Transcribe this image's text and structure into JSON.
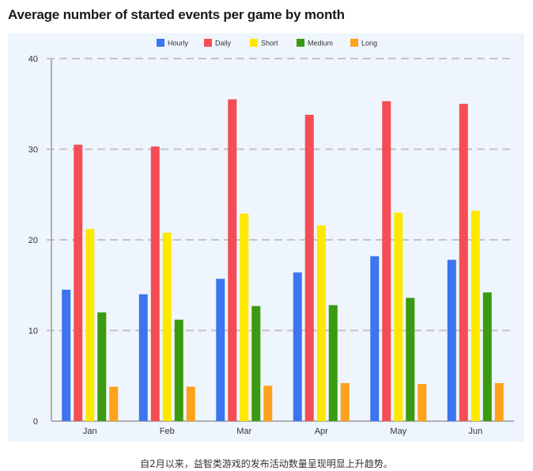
{
  "title": "Average number of started events per game by month",
  "caption": "自2月以来，益智类游戏的发布活动数量呈现明显上升趋势。",
  "colors": {
    "panel_bg": "#eef5fd",
    "grid": "#c4c4c4",
    "axis": "#999999"
  },
  "chart_data": {
    "type": "bar",
    "categories": [
      "Jan",
      "Feb",
      "Mar",
      "Apr",
      "May",
      "Jun"
    ],
    "series": [
      {
        "name": "Hourly",
        "color": "#3d74ef",
        "values": [
          14.5,
          14.0,
          15.7,
          16.4,
          18.2,
          17.8
        ]
      },
      {
        "name": "Daily",
        "color": "#f44d55",
        "values": [
          30.5,
          30.3,
          35.5,
          33.8,
          35.3,
          35.0
        ]
      },
      {
        "name": "Short",
        "color": "#ffe800",
        "values": [
          21.2,
          20.8,
          22.9,
          21.6,
          23.0,
          23.2
        ]
      },
      {
        "name": "Medium",
        "color": "#3a9a10",
        "values": [
          12.0,
          11.2,
          12.7,
          12.8,
          13.6,
          14.2
        ]
      },
      {
        "name": "Long",
        "color": "#ffa11a",
        "values": [
          3.8,
          3.8,
          3.9,
          4.2,
          4.1,
          4.2
        ]
      }
    ],
    "yticks": [
      0,
      10,
      20,
      30,
      40
    ],
    "ylim": [
      0,
      40
    ],
    "grid": true,
    "legend_position": "top-center"
  }
}
